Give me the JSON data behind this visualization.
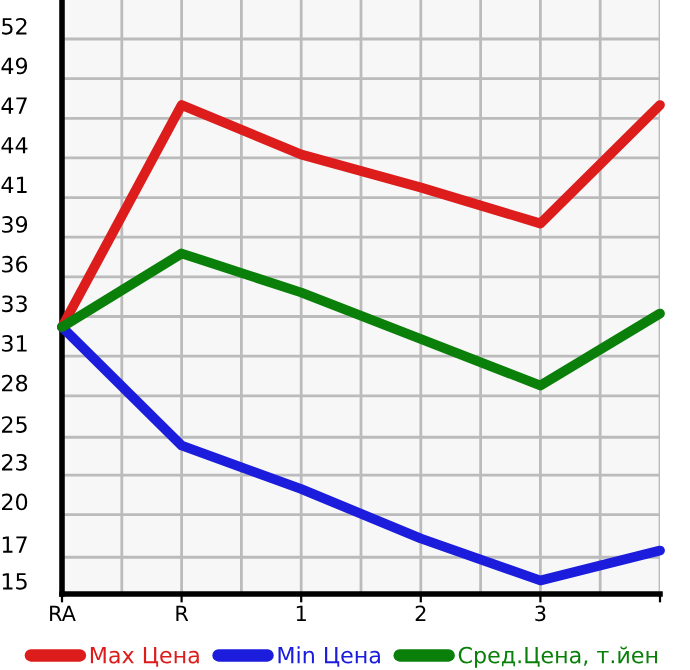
{
  "chart_data": {
    "type": "line",
    "categories": [
      "RA",
      "R",
      "1",
      "2",
      "3",
      null
    ],
    "series": [
      {
        "name": "Max Цена",
        "color": "#dd1c1c",
        "values": [
          32.8,
          47.6,
          44.3,
          42.1,
          39.7,
          47.6
        ]
      },
      {
        "name": "Min Цена",
        "color": "#1c1cdd",
        "values": [
          32.8,
          24.9,
          22.0,
          18.7,
          15.9,
          17.9
        ]
      },
      {
        "name": "Сред.Цена, т.йен",
        "color": "#0a800a",
        "values": [
          32.8,
          37.7,
          35.1,
          32.0,
          28.9,
          33.7
        ]
      }
    ],
    "ylim": [
      15,
      54.6
    ],
    "yticks": [
      15,
      {
        "value": 17.45,
        "label": "17"
      },
      {
        "value": 20.29,
        "label": "20"
      },
      {
        "value": 22.93,
        "label": "23"
      },
      {
        "value": 25.45,
        "label": "25"
      },
      {
        "value": 28.21,
        "label": "28"
      },
      {
        "value": 30.86,
        "label": "31"
      },
      {
        "value": 33.5,
        "label": "33"
      },
      {
        "value": 36.14,
        "label": "36"
      },
      {
        "value": 38.79,
        "label": "39"
      },
      {
        "value": 41.43,
        "label": "41"
      },
      {
        "value": 44.07,
        "label": "44"
      },
      {
        "value": 46.71,
        "label": "47"
      },
      {
        "value": 49.36,
        "label": "49"
      },
      {
        "value": 52,
        "label": "52"
      }
    ],
    "grid": true,
    "legend": "bottom",
    "marker": "none",
    "line_style": "solid"
  }
}
